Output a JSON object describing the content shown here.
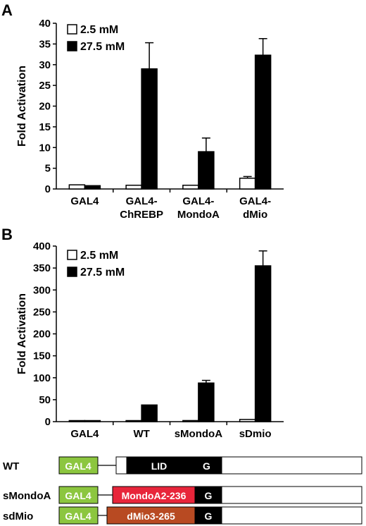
{
  "chart_data": [
    {
      "panel": "A",
      "type": "bar",
      "ylabel": "Fold Activation",
      "ylim": [
        0,
        40
      ],
      "yticks": [
        0,
        5,
        10,
        15,
        20,
        25,
        30,
        35,
        40
      ],
      "categories": [
        "GAL4",
        "GAL4-\nChREBP",
        "GAL4-\nMondoA",
        "GAL4-\ndMio"
      ],
      "legend_position": "top-left",
      "series": [
        {
          "name": "2.5 mM",
          "color": "#ffffff",
          "values": [
            1.0,
            0.9,
            0.9,
            2.6
          ],
          "errors": [
            0,
            0,
            0,
            0.4
          ]
        },
        {
          "name": "27.5 mM",
          "color": "#000000",
          "values": [
            0.8,
            29.0,
            9.0,
            32.3
          ],
          "errors": [
            0,
            6.3,
            3.3,
            4.0
          ]
        }
      ]
    },
    {
      "panel": "B",
      "type": "bar",
      "ylabel": "Fold Activation",
      "ylim": [
        0,
        400
      ],
      "yticks": [
        0,
        50,
        100,
        150,
        200,
        250,
        300,
        350,
        400
      ],
      "categories": [
        "GAL4",
        "WT",
        "sMondoA",
        "sDmio"
      ],
      "legend_position": "top-left",
      "series": [
        {
          "name": "2.5 mM",
          "color": "#ffffff",
          "values": [
            0.5,
            0.5,
            2.5,
            5
          ],
          "errors": [
            0,
            0,
            0,
            0
          ]
        },
        {
          "name": "27.5 mM",
          "color": "#000000",
          "values": [
            0.5,
            38,
            88,
            355
          ],
          "errors": [
            0,
            0,
            6,
            34
          ]
        }
      ]
    }
  ],
  "constructs": [
    {
      "name": "WT",
      "gal4": "GAL4",
      "domains": [
        {
          "label": "LID",
          "color": "#000000"
        },
        {
          "label": "G",
          "color": "#000000"
        }
      ]
    },
    {
      "name": "sMondoA",
      "gal4": "GAL4",
      "domains": [
        {
          "label": "MondoA2-236",
          "color": "#e8253a"
        },
        {
          "label": "G",
          "color": "#000000"
        }
      ]
    },
    {
      "name": "sdMio",
      "gal4": "GAL4",
      "domains": [
        {
          "label": "dMio3-265",
          "color": "#b84a22"
        },
        {
          "label": "G",
          "color": "#000000"
        }
      ]
    }
  ],
  "colors": {
    "gal4": "#8cc63f"
  }
}
